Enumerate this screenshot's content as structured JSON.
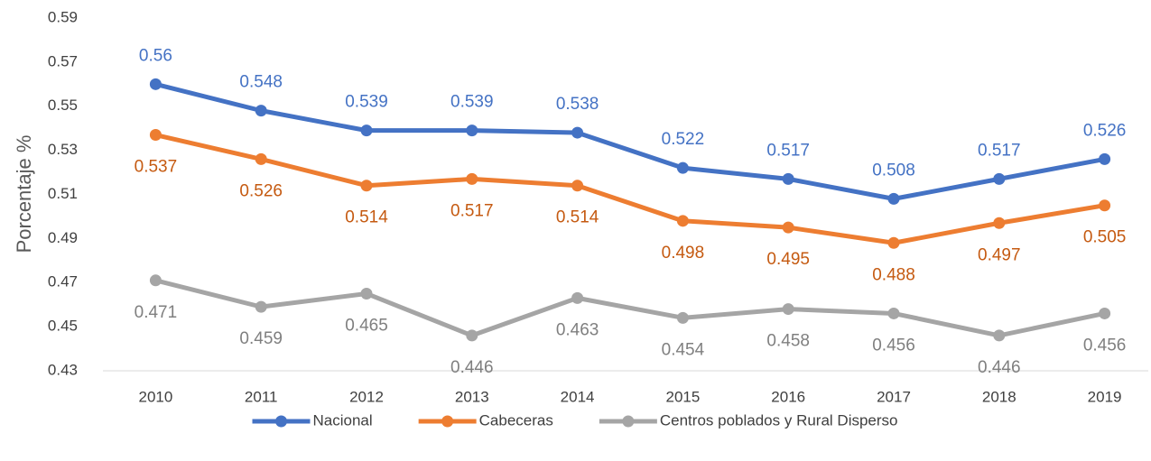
{
  "chart_data": {
    "type": "line",
    "y_label": "Porcentaje %",
    "categories": [
      "2010",
      "2011",
      "2012",
      "2013",
      "2014",
      "2015",
      "2016",
      "2017",
      "2018",
      "2019"
    ],
    "series": [
      {
        "name": "Nacional",
        "color": "#4472c4",
        "label_color": "#4472c4",
        "values": [
          0.56,
          0.548,
          0.539,
          0.539,
          0.538,
          0.522,
          0.517,
          0.508,
          0.517,
          0.526
        ]
      },
      {
        "name": "Cabeceras",
        "color": "#ed7d31",
        "label_color": "#c55a11",
        "values": [
          0.537,
          0.526,
          0.514,
          0.517,
          0.514,
          0.498,
          0.495,
          0.488,
          0.497,
          0.505
        ]
      },
      {
        "name": "Centros poblados y Rural Disperso",
        "color": "#a5a5a5",
        "label_color": "#7f7f7f",
        "values": [
          0.471,
          0.459,
          0.465,
          0.446,
          0.463,
          0.454,
          0.458,
          0.456,
          0.446,
          0.456
        ]
      }
    ],
    "ylim": [
      0.43,
      0.59
    ],
    "yticks": [
      0.43,
      0.45,
      0.47,
      0.49,
      0.51,
      0.53,
      0.55,
      0.57,
      0.59
    ],
    "grid": false,
    "legend": "bottom"
  }
}
